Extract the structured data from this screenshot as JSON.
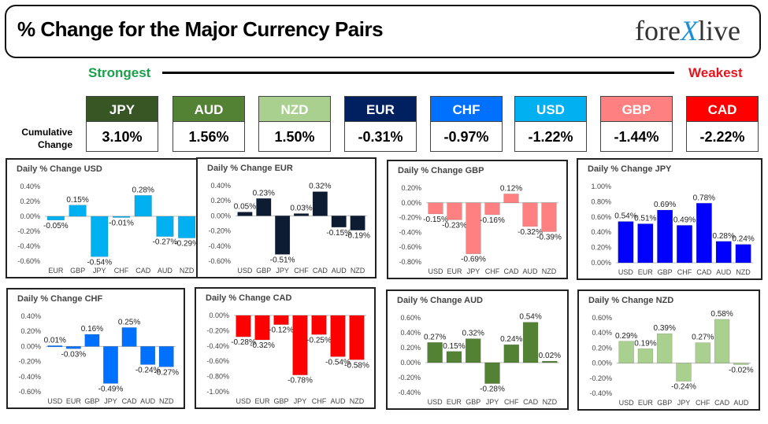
{
  "header": {
    "title": "% Change for the Major Currency Pairs",
    "logo_left": "fore",
    "logo_x": "X",
    "logo_right": "live"
  },
  "ranking": {
    "strongest_label": "Strongest",
    "weakest_label": "Weakest",
    "cumulative_label_1": "Cumulative",
    "cumulative_label_2": "Change",
    "tiles": [
      {
        "currency": "JPY",
        "value": "3.10%",
        "color": "#375623"
      },
      {
        "currency": "AUD",
        "value": "1.56%",
        "color": "#548235"
      },
      {
        "currency": "NZD",
        "value": "1.50%",
        "color": "#a9d08e"
      },
      {
        "currency": "EUR",
        "value": "-0.31%",
        "color": "#002060"
      },
      {
        "currency": "CHF",
        "value": "-0.97%",
        "color": "#0070ff"
      },
      {
        "currency": "USD",
        "value": "-1.22%",
        "color": "#00b0f0"
      },
      {
        "currency": "GBP",
        "value": "-1.44%",
        "color": "#ff8080"
      },
      {
        "currency": "CAD",
        "value": "-2.22%",
        "color": "#ff0000"
      }
    ]
  },
  "chart_data": [
    {
      "type": "bar",
      "title": "Daily % Change USD",
      "color": "#00b0f0",
      "categories": [
        "EUR",
        "GBP",
        "JPY",
        "CHF",
        "CAD",
        "AUD",
        "NZD"
      ],
      "values": [
        -0.05,
        0.15,
        -0.54,
        -0.01,
        0.28,
        -0.27,
        -0.29
      ],
      "data_labels": [
        "-0.05%",
        "0.15%",
        "-0.54%",
        "-0.01%",
        "0.28%",
        "-0.27%",
        "-0.29%"
      ],
      "yticks": [
        "0.40%",
        "0.20%",
        "0.00%",
        "-0.20%",
        "-0.40%",
        "-0.60%"
      ],
      "ylim": [
        -0.6,
        0.4
      ]
    },
    {
      "type": "bar",
      "title": "Daily % Change EUR",
      "color": "#0d1b33",
      "categories": [
        "USD",
        "GBP",
        "JPY",
        "CHF",
        "CAD",
        "AUD",
        "NZD"
      ],
      "values": [
        0.05,
        0.23,
        -0.51,
        0.03,
        0.32,
        -0.15,
        -0.19
      ],
      "data_labels": [
        "0.05%",
        "0.23%",
        "-0.51%",
        "0.03%",
        "0.32%",
        "-0.15%",
        "-0.19%"
      ],
      "yticks": [
        "0.40%",
        "0.20%",
        "0.00%",
        "-0.20%",
        "-0.40%",
        "-0.60%"
      ],
      "ylim": [
        -0.6,
        0.4
      ]
    },
    {
      "type": "bar",
      "title": "Daily % Change GBP",
      "color": "#ff8080",
      "categories": [
        "USD",
        "EUR",
        "JPY",
        "CHF",
        "CAD",
        "AUD",
        "NZD"
      ],
      "values": [
        -0.15,
        -0.23,
        -0.69,
        -0.16,
        0.12,
        -0.32,
        -0.39
      ],
      "data_labels": [
        "-0.15%",
        "-0.23%",
        "-0.69%",
        "-0.16%",
        "0.12%",
        "-0.32%",
        "-0.39%"
      ],
      "yticks": [
        "0.20%",
        "0.00%",
        "-0.20%",
        "-0.40%",
        "-0.60%",
        "-0.80%"
      ],
      "ylim": [
        -0.8,
        0.2
      ]
    },
    {
      "type": "bar",
      "title": "Daily % Change JPY",
      "color": "#0000ff",
      "categories": [
        "USD",
        "EUR",
        "GBP",
        "CHF",
        "CAD",
        "AUD",
        "NZD"
      ],
      "values": [
        0.54,
        0.51,
        0.69,
        0.49,
        0.78,
        0.28,
        0.24
      ],
      "data_labels": [
        "0.54%",
        "0.51%",
        "0.69%",
        "0.49%",
        "0.78%",
        "0.28%",
        "0.24%"
      ],
      "yticks": [
        "1.00%",
        "0.80%",
        "0.60%",
        "0.40%",
        "0.20%",
        "0.00%"
      ],
      "ylim": [
        0,
        1.0
      ]
    },
    {
      "type": "bar",
      "title": "Daily % Change CHF",
      "color": "#0070ff",
      "categories": [
        "USD",
        "EUR",
        "GBP",
        "JPY",
        "CAD",
        "AUD",
        "NZD"
      ],
      "values": [
        0.01,
        -0.03,
        0.16,
        -0.49,
        0.25,
        -0.24,
        -0.27
      ],
      "data_labels": [
        "0.01%",
        "-0.03%",
        "0.16%",
        "-0.49%",
        "0.25%",
        "-0.24%",
        "-0.27%"
      ],
      "yticks": [
        "0.40%",
        "0.20%",
        "0.00%",
        "-0.20%",
        "-0.40%",
        "-0.60%"
      ],
      "ylim": [
        -0.6,
        0.4
      ]
    },
    {
      "type": "bar",
      "title": "Daily % Change CAD",
      "color": "#ff0000",
      "categories": [
        "USD",
        "EUR",
        "GBP",
        "JPY",
        "CHF",
        "AUD",
        "NZD"
      ],
      "values": [
        -0.28,
        -0.32,
        -0.12,
        -0.78,
        -0.25,
        -0.54,
        -0.58
      ],
      "data_labels": [
        "-0.28%",
        "-0.32%",
        "-0.12%",
        "-0.78%",
        "-0.25%",
        "-0.54%",
        "-0.58%"
      ],
      "yticks": [
        "0.00%",
        "-0.20%",
        "-0.40%",
        "-0.60%",
        "-0.80%",
        "-1.00%"
      ],
      "ylim": [
        -1.0,
        0
      ]
    },
    {
      "type": "bar",
      "title": "Daily % Change AUD",
      "color": "#548235",
      "categories": [
        "USD",
        "EUR",
        "GBP",
        "JPY",
        "CHF",
        "CAD",
        "NZD"
      ],
      "values": [
        0.27,
        0.15,
        0.32,
        -0.28,
        0.24,
        0.54,
        0.02
      ],
      "data_labels": [
        "0.27%",
        "0.15%",
        "0.32%",
        "-0.28%",
        "0.24%",
        "0.54%",
        "0.02%"
      ],
      "yticks": [
        "0.60%",
        "0.40%",
        "0.20%",
        "0.00%",
        "-0.20%",
        "-0.40%"
      ],
      "ylim": [
        -0.4,
        0.6
      ]
    },
    {
      "type": "bar",
      "title": "Daily % Change NZD",
      "color": "#a9d08e",
      "categories": [
        "USD",
        "EUR",
        "GBP",
        "JPY",
        "CHF",
        "CAD",
        "AUD"
      ],
      "values": [
        0.29,
        0.19,
        0.39,
        -0.24,
        0.27,
        0.58,
        -0.02
      ],
      "data_labels": [
        "0.29%",
        "0.19%",
        "0.39%",
        "-0.24%",
        "0.27%",
        "0.58%",
        "-0.02%"
      ],
      "yticks": [
        "0.60%",
        "0.40%",
        "0.20%",
        "0.00%",
        "-0.20%",
        "-0.40%"
      ],
      "ylim": [
        -0.4,
        0.6
      ]
    }
  ]
}
